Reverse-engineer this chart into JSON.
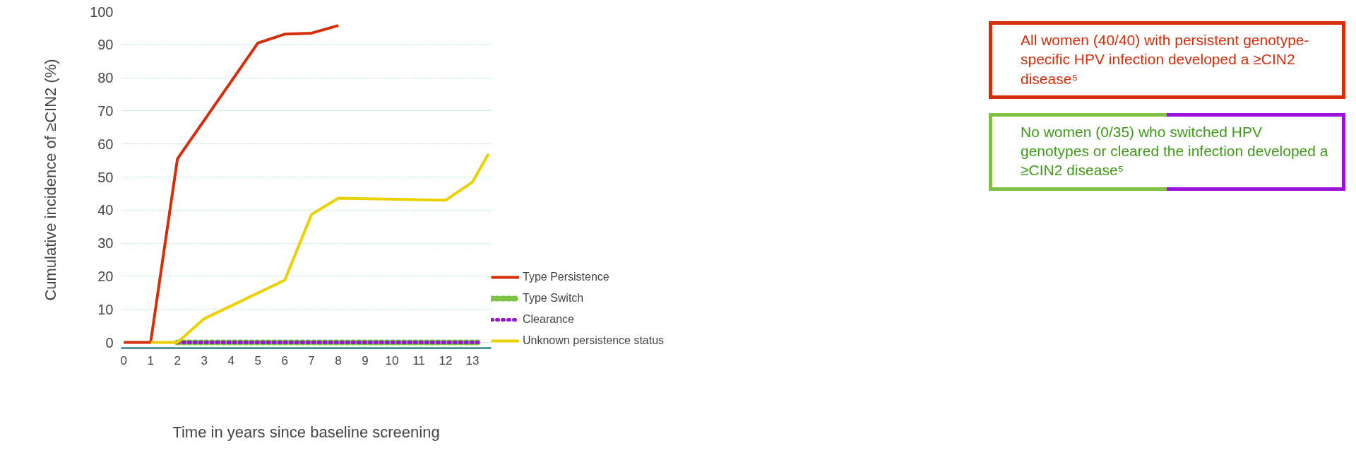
{
  "chart_data": {
    "type": "line",
    "xlabel": "Time in years since baseline screening",
    "ylabel": "Cumulative incidence of ≥CIN2 (%)",
    "xlim": [
      -0.1,
      13.7
    ],
    "ylim": [
      -1.7,
      100
    ],
    "xticks": [
      0,
      1,
      2,
      3,
      4,
      5,
      6,
      7,
      8,
      9,
      10,
      11,
      12,
      13
    ],
    "yticks": [
      0,
      10,
      20,
      30,
      40,
      50,
      60,
      70,
      80,
      90,
      100
    ],
    "grid": "y",
    "legend": "bottom right",
    "marker": "none",
    "series": [
      {
        "name": "Type Persistence",
        "color": "#d62d0a",
        "line_style": "solid",
        "x": [
          0,
          1,
          2,
          5,
          6,
          7,
          8
        ],
        "values": [
          0,
          0,
          55.5,
          90.5,
          93.2,
          93.5,
          95.8
        ]
      },
      {
        "name": "Type Switch",
        "color": "#7dc242",
        "line_style": "dotted",
        "x": [
          2,
          13.2
        ],
        "values": [
          0,
          0
        ]
      },
      {
        "name": "Clearance",
        "color": "#9b12d9",
        "line_style": "dotted",
        "x": [
          2,
          13.2
        ],
        "values": [
          0,
          0
        ]
      },
      {
        "name": "Unknown persistence status",
        "color": "#ecd000",
        "line_style": "solid",
        "x": [
          1,
          2,
          3,
          6,
          7,
          8,
          12,
          13,
          13.6
        ],
        "values": [
          0,
          0,
          7.2,
          18.8,
          38.7,
          43.6,
          43,
          48.5,
          57
        ]
      }
    ],
    "annotations": [
      "All women (40/40) with persistent genotype-specific HPV infection developed a ≥CIN2 disease⁵",
      "No women (0/35) who switched HPV genotypes or cleared the infection developed a ≥CIN2 disease⁵"
    ]
  }
}
